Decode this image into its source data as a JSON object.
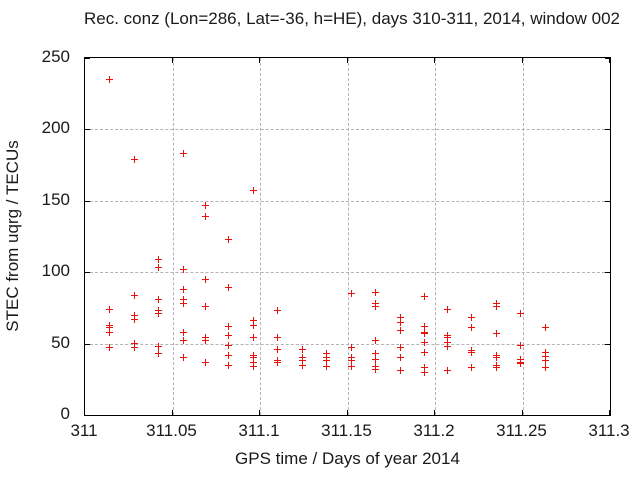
{
  "title": "Rec. conz (Lon=286, Lat=-36, h=HE), days 310-311, 2014, window 002",
  "chart_data": {
    "type": "scatter",
    "title": "Rec. conz (Lon=286, Lat=-36, h=HE), days 310-311, 2014, window 002",
    "xlabel": "GPS time / Days of year 2014",
    "ylabel": "STEC from uqrg / TECUs",
    "xlim": [
      311,
      311.3
    ],
    "ylim": [
      0,
      250
    ],
    "xticks": [
      311,
      311.05,
      311.1,
      311.15,
      311.2,
      311.25,
      311.3
    ],
    "xtick_labels": [
      "311",
      "311.05",
      "311.1",
      "311.15",
      "311.2",
      "311.25",
      "311.3"
    ],
    "yticks": [
      0,
      50,
      100,
      150,
      200,
      250
    ],
    "ytick_labels": [
      "0",
      "50",
      "100",
      "150",
      "200",
      "250"
    ],
    "grid": true,
    "legend_position": "none",
    "marker": {
      "shape": "plus",
      "color": "#e8110b",
      "size": 7
    },
    "grid_color": "#b3b3b3",
    "frame_color": "#000000",
    "series": [
      {
        "name": "STEC",
        "points": [
          [
            311.014,
            235
          ],
          [
            311.014,
            74
          ],
          [
            311.014,
            63
          ],
          [
            311.014,
            61
          ],
          [
            311.014,
            58
          ],
          [
            311.014,
            47
          ],
          [
            311.028,
            179
          ],
          [
            311.028,
            84
          ],
          [
            311.028,
            70
          ],
          [
            311.028,
            67
          ],
          [
            311.028,
            50
          ],
          [
            311.028,
            47
          ],
          [
            311.042,
            109
          ],
          [
            311.042,
            103
          ],
          [
            311.042,
            81
          ],
          [
            311.042,
            73
          ],
          [
            311.042,
            71
          ],
          [
            311.042,
            48
          ],
          [
            311.042,
            43
          ],
          [
            311.056,
            183
          ],
          [
            311.056,
            102
          ],
          [
            311.056,
            88
          ],
          [
            311.056,
            81
          ],
          [
            311.056,
            78
          ],
          [
            311.056,
            58
          ],
          [
            311.056,
            52
          ],
          [
            311.056,
            40
          ],
          [
            311.069,
            147
          ],
          [
            311.069,
            139
          ],
          [
            311.069,
            95
          ],
          [
            311.069,
            76
          ],
          [
            311.069,
            54
          ],
          [
            311.069,
            52
          ],
          [
            311.069,
            37
          ],
          [
            311.082,
            123
          ],
          [
            311.082,
            89
          ],
          [
            311.082,
            62
          ],
          [
            311.082,
            56
          ],
          [
            311.082,
            49
          ],
          [
            311.082,
            42
          ],
          [
            311.082,
            35
          ],
          [
            311.096,
            157
          ],
          [
            311.096,
            66
          ],
          [
            311.096,
            63
          ],
          [
            311.096,
            54
          ],
          [
            311.096,
            42
          ],
          [
            311.096,
            40
          ],
          [
            311.096,
            37
          ],
          [
            311.096,
            34
          ],
          [
            311.11,
            73
          ],
          [
            311.11,
            54
          ],
          [
            311.11,
            46
          ],
          [
            311.11,
            38
          ],
          [
            311.11,
            37
          ],
          [
            311.124,
            46
          ],
          [
            311.124,
            40
          ],
          [
            311.124,
            38
          ],
          [
            311.124,
            35
          ],
          [
            311.138,
            43
          ],
          [
            311.138,
            40
          ],
          [
            311.138,
            38
          ],
          [
            311.138,
            34
          ],
          [
            311.152,
            85
          ],
          [
            311.152,
            47
          ],
          [
            311.152,
            40
          ],
          [
            311.152,
            38
          ],
          [
            311.152,
            34
          ],
          [
            311.166,
            86
          ],
          [
            311.166,
            78
          ],
          [
            311.166,
            76
          ],
          [
            311.166,
            52
          ],
          [
            311.166,
            43
          ],
          [
            311.166,
            39
          ],
          [
            311.166,
            34
          ],
          [
            311.166,
            32
          ],
          [
            311.18,
            68
          ],
          [
            311.18,
            65
          ],
          [
            311.18,
            59
          ],
          [
            311.18,
            47
          ],
          [
            311.18,
            40
          ],
          [
            311.18,
            31
          ],
          [
            311.194,
            83
          ],
          [
            311.194,
            62
          ],
          [
            311.194,
            58
          ],
          [
            311.194,
            57
          ],
          [
            311.194,
            51
          ],
          [
            311.194,
            44
          ],
          [
            311.194,
            33
          ],
          [
            311.194,
            30
          ],
          [
            311.207,
            74
          ],
          [
            311.207,
            56
          ],
          [
            311.207,
            54
          ],
          [
            311.207,
            51
          ],
          [
            311.207,
            48
          ],
          [
            311.207,
            31
          ],
          [
            311.221,
            68
          ],
          [
            311.221,
            61
          ],
          [
            311.221,
            45
          ],
          [
            311.221,
            44
          ],
          [
            311.221,
            33
          ],
          [
            311.235,
            78
          ],
          [
            311.235,
            76
          ],
          [
            311.235,
            57
          ],
          [
            311.235,
            42
          ],
          [
            311.235,
            40
          ],
          [
            311.235,
            35
          ],
          [
            311.235,
            33
          ],
          [
            311.249,
            71
          ],
          [
            311.249,
            49
          ],
          [
            311.249,
            39
          ],
          [
            311.249,
            37
          ],
          [
            311.249,
            36
          ],
          [
            311.263,
            61
          ],
          [
            311.263,
            44
          ],
          [
            311.263,
            41
          ],
          [
            311.263,
            38
          ],
          [
            311.263,
            33
          ]
        ]
      }
    ]
  }
}
